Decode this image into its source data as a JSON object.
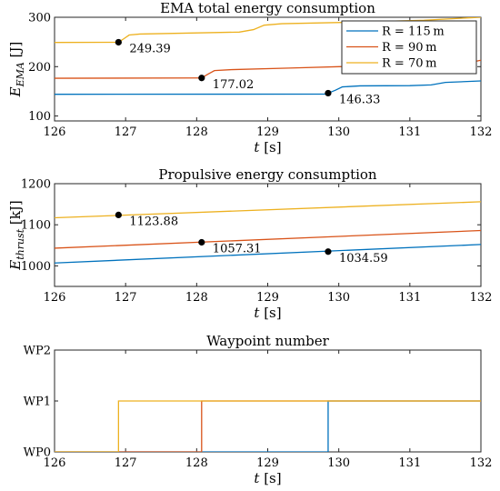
{
  "chart_data": [
    {
      "type": "line",
      "title": "EMA total energy consumption",
      "xlabel": "t [s]",
      "ylabel_main": "E",
      "ylabel_sub": "EMA",
      "ylabel_unit": " [J]",
      "xlim": [
        126,
        132
      ],
      "ylim": [
        90,
        300
      ],
      "xticks": [
        126,
        127,
        128,
        129,
        130,
        131,
        132
      ],
      "yticks": [
        100,
        200,
        300
      ],
      "legend": {
        "placement": "top-right",
        "entries": [
          "R = 115 m",
          "R = 90 m",
          "R = 70 m"
        ]
      },
      "series": [
        {
          "name": "R = 115 m",
          "color": "#0072BD",
          "x": [
            126,
            129.8,
            129.85,
            129.95,
            130.05,
            130.3,
            131.0,
            131.3,
            131.5,
            132
          ],
          "y": [
            144,
            144.3,
            146.33,
            152,
            159,
            161,
            161.5,
            163,
            168,
            171
          ]
        },
        {
          "name": "R = 90 m",
          "color": "#D95319",
          "x": [
            126,
            128.0,
            128.07,
            128.15,
            128.25,
            128.5,
            129.3,
            130.5,
            131.0,
            131.8,
            131.9,
            132
          ],
          "y": [
            176.5,
            177,
            177.02,
            184,
            192,
            194,
            197,
            202,
            204,
            207,
            210,
            213
          ]
        },
        {
          "name": "R = 70 m",
          "color": "#EDB120",
          "x": [
            126,
            126.85,
            126.9,
            126.97,
            127.05,
            127.2,
            128.6,
            128.8,
            128.95,
            129.2,
            130.2,
            131.2,
            131.85,
            132
          ],
          "y": [
            249,
            249.3,
            249.39,
            256,
            264,
            266,
            270,
            275,
            284,
            287,
            290,
            294,
            299,
            300
          ]
        }
      ],
      "markers": [
        {
          "x": 126.9,
          "y": 249.39,
          "label": "249.39"
        },
        {
          "x": 128.07,
          "y": 177.02,
          "label": "177.02"
        },
        {
          "x": 129.85,
          "y": 146.33,
          "label": "146.33"
        }
      ]
    },
    {
      "type": "line",
      "title": "Propulsive energy consumption",
      "xlabel": "t [s]",
      "ylabel_main": "E",
      "ylabel_sub": "thrust",
      "ylabel_unit": " [kJ]",
      "xlim": [
        126,
        132
      ],
      "ylim": [
        950,
        1200
      ],
      "xticks": [
        126,
        127,
        128,
        129,
        130,
        131,
        132
      ],
      "yticks": [
        1000,
        1100,
        1200
      ],
      "series": [
        {
          "name": "R = 115 m",
          "color": "#0072BD",
          "x": [
            126,
            132
          ],
          "y": [
            1007,
            1052
          ]
        },
        {
          "name": "R = 90 m",
          "color": "#D95319",
          "x": [
            126,
            132
          ],
          "y": [
            1043,
            1086
          ]
        },
        {
          "name": "R = 70 m",
          "color": "#EDB120",
          "x": [
            126,
            132
          ],
          "y": [
            1117,
            1156
          ]
        }
      ],
      "markers": [
        {
          "x": 126.9,
          "y": 1123.88,
          "label": "1123.88"
        },
        {
          "x": 128.07,
          "y": 1057.31,
          "label": "1057.31"
        },
        {
          "x": 129.85,
          "y": 1034.59,
          "label": "1034.59"
        }
      ]
    },
    {
      "type": "line",
      "title": "Waypoint number",
      "xlabel": "t [s]",
      "xlim": [
        126,
        132
      ],
      "ylim": [
        0,
        2
      ],
      "xticks": [
        126,
        127,
        128,
        129,
        130,
        131,
        132
      ],
      "yticks": [
        0,
        1,
        2
      ],
      "ytick_labels": [
        "WP0",
        "WP1",
        "WP2"
      ],
      "series": [
        {
          "name": "R = 115 m",
          "color": "#0072BD",
          "x": [
            126,
            129.85,
            129.85,
            132
          ],
          "y": [
            0,
            0,
            1,
            1
          ]
        },
        {
          "name": "R = 90 m",
          "color": "#D95319",
          "x": [
            126,
            128.07,
            128.07,
            132
          ],
          "y": [
            0,
            0,
            1,
            1
          ]
        },
        {
          "name": "R = 70 m",
          "color": "#EDB120",
          "x": [
            126,
            126.9,
            126.9,
            132
          ],
          "y": [
            0,
            0,
            1,
            1
          ]
        }
      ]
    }
  ]
}
